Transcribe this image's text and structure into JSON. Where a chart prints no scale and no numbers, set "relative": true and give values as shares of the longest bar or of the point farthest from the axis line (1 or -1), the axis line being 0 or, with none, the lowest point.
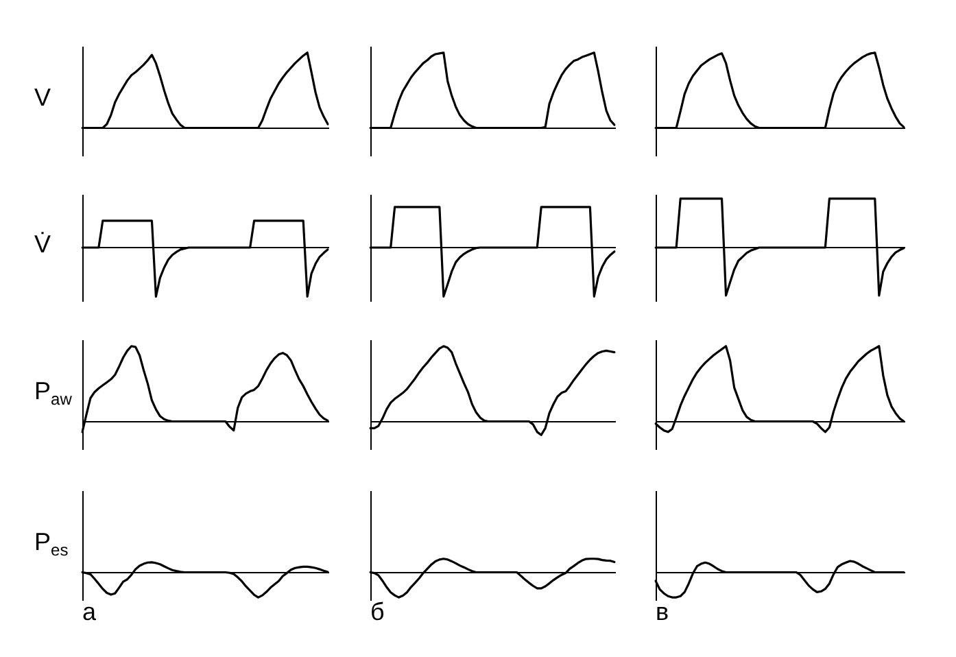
{
  "chart_data": [
    {
      "type": "line",
      "relative": true,
      "ylabel": "V",
      "color": "#000000",
      "categories": [
        null,
        null,
        null,
        null,
        null,
        null,
        null,
        null,
        null,
        null,
        null,
        null,
        null,
        null,
        null,
        null,
        null,
        null,
        null,
        null,
        null,
        null,
        null,
        null,
        null,
        null,
        null,
        null,
        null,
        null,
        null,
        null,
        null,
        null,
        null,
        null,
        null,
        null,
        null,
        null,
        null,
        null,
        null,
        null,
        null,
        null,
        null,
        null,
        null,
        null,
        null,
        null,
        null,
        null,
        null,
        null,
        null,
        null,
        null,
        null,
        null
      ],
      "values": [
        0,
        0,
        0,
        0,
        0,
        0,
        0.05,
        0.17,
        0.34,
        0.45,
        0.54,
        0.63,
        0.7,
        0.74,
        0.79,
        0.84,
        0.9,
        0.97,
        0.86,
        0.69,
        0.5,
        0.33,
        0.19,
        0.11,
        0.04,
        0,
        0,
        0,
        0,
        0,
        0,
        0,
        0,
        0,
        0,
        0,
        0,
        0,
        0,
        0,
        0,
        0,
        0,
        0,
        0.1,
        0.25,
        0.39,
        0.49,
        0.59,
        0.67,
        0.74,
        0.8,
        0.86,
        0.91,
        0.96,
        1,
        0.74,
        0.47,
        0.27,
        0.15,
        0.05
      ]
    },
    {
      "type": "line",
      "relative": true,
      "color": "#000000",
      "categories": [
        null,
        null,
        null,
        null,
        null,
        null,
        null,
        null,
        null,
        null,
        null,
        null,
        null,
        null,
        null,
        null,
        null,
        null,
        null,
        null,
        null,
        null,
        null,
        null,
        null,
        null,
        null,
        null,
        null,
        null,
        null,
        null,
        null,
        null,
        null,
        null,
        null,
        null,
        null,
        null,
        null,
        null,
        null,
        null,
        null,
        null,
        null,
        null,
        null,
        null,
        null,
        null,
        null,
        null,
        null,
        null,
        null,
        null,
        null,
        null,
        null
      ],
      "values": [
        0,
        0,
        0,
        0,
        0,
        0,
        0.19,
        0.36,
        0.49,
        0.58,
        0.67,
        0.74,
        0.8,
        0.86,
        0.9,
        0.95,
        0.98,
        0.99,
        1,
        0.62,
        0.43,
        0.28,
        0.17,
        0.1,
        0.05,
        0.02,
        0,
        0,
        0,
        0,
        0,
        0,
        0,
        0,
        0,
        0,
        0,
        0,
        0,
        0,
        0,
        0,
        0,
        0.01,
        0.32,
        0.47,
        0.59,
        0.7,
        0.78,
        0.84,
        0.89,
        0.91,
        0.94,
        0.96,
        0.98,
        1,
        0.75,
        0.47,
        0.23,
        0.1,
        0.04
      ]
    },
    {
      "type": "line",
      "relative": true,
      "color": "#000000",
      "categories": [
        null,
        null,
        null,
        null,
        null,
        null,
        null,
        null,
        null,
        null,
        null,
        null,
        null,
        null,
        null,
        null,
        null,
        null,
        null,
        null,
        null,
        null,
        null,
        null,
        null,
        null,
        null,
        null,
        null,
        null,
        null,
        null,
        null,
        null,
        null,
        null,
        null,
        null,
        null,
        null,
        null,
        null,
        null,
        null,
        null,
        null,
        null,
        null,
        null,
        null,
        null,
        null,
        null,
        null,
        null,
        null,
        null,
        null,
        null,
        null,
        null
      ],
      "values": [
        0,
        0,
        0,
        0,
        0,
        0,
        0.22,
        0.45,
        0.59,
        0.69,
        0.76,
        0.83,
        0.87,
        0.91,
        0.94,
        0.97,
        0.99,
        0.86,
        0.63,
        0.43,
        0.3,
        0.2,
        0.12,
        0.06,
        0.02,
        0,
        0,
        0,
        0,
        0,
        0,
        0,
        0,
        0,
        0,
        0,
        0,
        0,
        0,
        0,
        0,
        0,
        0.25,
        0.46,
        0.59,
        0.68,
        0.75,
        0.81,
        0.86,
        0.9,
        0.94,
        0.97,
        0.99,
        1,
        0.8,
        0.57,
        0.39,
        0.26,
        0.15,
        0.06,
        0.01
      ]
    },
    {
      "type": "line",
      "relative": true,
      "ylabel": "V̇",
      "color": "#000000",
      "categories": [
        null,
        null,
        null,
        null,
        null,
        null,
        null,
        null,
        null,
        null,
        null,
        null,
        null,
        null,
        null,
        null,
        null,
        null,
        null,
        null,
        null,
        null,
        null,
        null,
        null,
        null,
        null,
        null,
        null,
        null,
        null,
        null,
        null,
        null,
        null,
        null,
        null,
        null,
        null,
        null,
        null,
        null,
        null,
        null,
        null,
        null,
        null,
        null,
        null,
        null,
        null,
        null,
        null,
        null,
        null,
        null,
        null,
        null,
        null,
        null,
        null
      ],
      "values": [
        0,
        0,
        0,
        0,
        0,
        0.55,
        0.55,
        0.55,
        0.55,
        0.55,
        0.55,
        0.55,
        0.55,
        0.55,
        0.55,
        0.55,
        0.55,
        0.55,
        -1,
        -0.62,
        -0.41,
        -0.25,
        -0.15,
        -0.09,
        -0.04,
        -0.02,
        0,
        0,
        0,
        0,
        0,
        0,
        0,
        0,
        0,
        0,
        0,
        0,
        0,
        0,
        0,
        0,
        0.55,
        0.55,
        0.55,
        0.55,
        0.55,
        0.55,
        0.55,
        0.55,
        0.55,
        0.55,
        0.55,
        0.55,
        0.55,
        -1,
        -0.53,
        -0.33,
        -0.19,
        -0.11,
        -0.04
      ]
    },
    {
      "type": "line",
      "relative": true,
      "color": "#000000",
      "categories": [
        null,
        null,
        null,
        null,
        null,
        null,
        null,
        null,
        null,
        null,
        null,
        null,
        null,
        null,
        null,
        null,
        null,
        null,
        null,
        null,
        null,
        null,
        null,
        null,
        null,
        null,
        null,
        null,
        null,
        null,
        null,
        null,
        null,
        null,
        null,
        null,
        null,
        null,
        null,
        null,
        null,
        null,
        null,
        null,
        null,
        null,
        null,
        null,
        null,
        null,
        null,
        null,
        null,
        null,
        null,
        null,
        null,
        null,
        null,
        null,
        null
      ],
      "values": [
        0,
        0,
        0,
        0,
        0,
        0,
        0.83,
        0.83,
        0.83,
        0.83,
        0.83,
        0.83,
        0.83,
        0.83,
        0.83,
        0.83,
        0.83,
        0.83,
        -1,
        -0.75,
        -0.49,
        -0.3,
        -0.2,
        -0.13,
        -0.08,
        -0.04,
        -0.01,
        0,
        0,
        0,
        0,
        0,
        0,
        0,
        0,
        0,
        0,
        0,
        0,
        0,
        0,
        0,
        0.83,
        0.83,
        0.83,
        0.83,
        0.83,
        0.83,
        0.83,
        0.83,
        0.83,
        0.83,
        0.83,
        0.83,
        0.83,
        -1,
        -0.6,
        -0.39,
        -0.24,
        -0.15,
        -0.08
      ]
    },
    {
      "type": "line",
      "relative": true,
      "color": "#000000",
      "categories": [
        null,
        null,
        null,
        null,
        null,
        null,
        null,
        null,
        null,
        null,
        null,
        null,
        null,
        null,
        null,
        null,
        null,
        null,
        null,
        null,
        null,
        null,
        null,
        null,
        null,
        null,
        null,
        null,
        null,
        null,
        null,
        null,
        null,
        null,
        null,
        null,
        null,
        null,
        null,
        null,
        null,
        null,
        null,
        null,
        null,
        null,
        null,
        null,
        null,
        null,
        null,
        null,
        null,
        null,
        null,
        null,
        null,
        null,
        null,
        null,
        null
      ],
      "values": [
        0,
        0,
        0,
        0,
        0,
        0,
        1,
        1,
        1,
        1,
        1,
        1,
        1,
        1,
        1,
        1,
        1,
        -0.98,
        -0.71,
        -0.45,
        -0.27,
        -0.19,
        -0.11,
        -0.06,
        -0.03,
        0,
        0,
        0,
        0,
        0,
        0,
        0,
        0,
        0,
        0,
        0,
        0,
        0,
        0,
        0,
        0,
        0,
        1,
        1,
        1,
        1,
        1,
        1,
        1,
        1,
        1,
        1,
        1,
        1,
        -0.98,
        -0.49,
        -0.32,
        -0.19,
        -0.1,
        -0.05,
        -0.01
      ]
    },
    {
      "type": "line",
      "relative": true,
      "ylabel": "P$_{aw}$",
      "color": "#000000",
      "categories": [
        null,
        null,
        null,
        null,
        null,
        null,
        null,
        null,
        null,
        null,
        null,
        null,
        null,
        null,
        null,
        null,
        null,
        null,
        null,
        null,
        null,
        null,
        null,
        null,
        null,
        null,
        null,
        null,
        null,
        null,
        null,
        null,
        null,
        null,
        null,
        null,
        null,
        null,
        null,
        null,
        null,
        null,
        null,
        null,
        null,
        null,
        null,
        null,
        null,
        null,
        null,
        null,
        null,
        null,
        null,
        null,
        null,
        null,
        null,
        null,
        null
      ],
      "values": [
        -0.14,
        0.09,
        0.31,
        0.39,
        0.44,
        0.48,
        0.52,
        0.56,
        0.62,
        0.73,
        0.85,
        0.94,
        1,
        0.99,
        0.88,
        0.68,
        0.5,
        0.28,
        0.16,
        0.07,
        0.03,
        0.01,
        0,
        0,
        0,
        0,
        0,
        0,
        0,
        0,
        0,
        0,
        0,
        0,
        0,
        0,
        -0.07,
        -0.12,
        0.18,
        0.32,
        0.37,
        0.4,
        0.42,
        0.47,
        0.57,
        0.68,
        0.77,
        0.84,
        0.89,
        0.91,
        0.88,
        0.81,
        0.68,
        0.56,
        0.47,
        0.36,
        0.26,
        0.17,
        0.09,
        0.04,
        0.01
      ]
    },
    {
      "type": "line",
      "relative": true,
      "color": "#000000",
      "categories": [
        null,
        null,
        null,
        null,
        null,
        null,
        null,
        null,
        null,
        null,
        null,
        null,
        null,
        null,
        null,
        null,
        null,
        null,
        null,
        null,
        null,
        null,
        null,
        null,
        null,
        null,
        null,
        null,
        null,
        null,
        null,
        null,
        null,
        null,
        null,
        null,
        null,
        null,
        null,
        null,
        null,
        null,
        null,
        null,
        null,
        null,
        null,
        null,
        null,
        null,
        null,
        null,
        null,
        null,
        null,
        null,
        null,
        null,
        null,
        null,
        null
      ],
      "values": [
        -0.09,
        -0.09,
        -0.06,
        0.04,
        0.16,
        0.25,
        0.3,
        0.34,
        0.38,
        0.43,
        0.5,
        0.57,
        0.65,
        0.72,
        0.78,
        0.85,
        0.91,
        0.97,
        1,
        0.98,
        0.92,
        0.77,
        0.64,
        0.51,
        0.39,
        0.23,
        0.12,
        0.05,
        0.01,
        0,
        0,
        0,
        0,
        0,
        0,
        0,
        0,
        0,
        0,
        0,
        -0.04,
        -0.14,
        -0.18,
        -0.09,
        0.11,
        0.23,
        0.33,
        0.38,
        0.4,
        0.47,
        0.55,
        0.62,
        0.69,
        0.76,
        0.82,
        0.87,
        0.91,
        0.93,
        0.94,
        0.93,
        0.92
      ]
    },
    {
      "type": "line",
      "relative": true,
      "color": "#000000",
      "categories": [
        null,
        null,
        null,
        null,
        null,
        null,
        null,
        null,
        null,
        null,
        null,
        null,
        null,
        null,
        null,
        null,
        null,
        null,
        null,
        null,
        null,
        null,
        null,
        null,
        null,
        null,
        null,
        null,
        null,
        null,
        null,
        null,
        null,
        null,
        null,
        null,
        null,
        null,
        null,
        null,
        null,
        null,
        null,
        null,
        null,
        null,
        null,
        null,
        null,
        null,
        null,
        null,
        null,
        null,
        null,
        null,
        null,
        null,
        null,
        null,
        null
      ],
      "values": [
        -0.03,
        -0.08,
        -0.12,
        -0.14,
        -0.1,
        0.05,
        0.21,
        0.34,
        0.45,
        0.56,
        0.65,
        0.72,
        0.78,
        0.83,
        0.88,
        0.92,
        0.96,
        1,
        0.81,
        0.45,
        0.3,
        0.15,
        0.06,
        0.02,
        0,
        0,
        0,
        0,
        0,
        0,
        0,
        0,
        0,
        0,
        0,
        0,
        0,
        0,
        0,
        -0.03,
        -0.09,
        -0.14,
        -0.08,
        0.13,
        0.3,
        0.45,
        0.57,
        0.66,
        0.73,
        0.8,
        0.85,
        0.9,
        0.94,
        0.97,
        1,
        0.61,
        0.35,
        0.2,
        0.11,
        0.04,
        0
      ]
    },
    {
      "type": "line",
      "relative": true,
      "ylabel": "P$_{es}$",
      "annotations": [
        "а"
      ],
      "color": "#000000",
      "categories": [
        null,
        null,
        null,
        null,
        null,
        null,
        null,
        null,
        null,
        null,
        null,
        null,
        null,
        null,
        null,
        null,
        null,
        null,
        null,
        null,
        null,
        null,
        null,
        null,
        null,
        null,
        null,
        null,
        null,
        null,
        null,
        null,
        null,
        null,
        null,
        null,
        null,
        null,
        null,
        null,
        null,
        null,
        null,
        null,
        null,
        null,
        null,
        null,
        null,
        null,
        null,
        null,
        null,
        null,
        null,
        null,
        null,
        null,
        null,
        null,
        null
      ],
      "values": [
        0,
        -0.03,
        -0.08,
        -0.26,
        -0.46,
        -0.66,
        -0.82,
        -0.89,
        -0.84,
        -0.61,
        -0.37,
        -0.28,
        -0.1,
        0.12,
        0.26,
        0.34,
        0.39,
        0.4,
        0.37,
        0.32,
        0.24,
        0.16,
        0.09,
        0.05,
        0.02,
        0,
        0,
        0,
        0,
        0,
        0,
        0,
        0,
        0,
        0,
        0,
        -0.02,
        -0.07,
        -0.2,
        -0.36,
        -0.56,
        -0.73,
        -0.9,
        -1,
        -0.92,
        -0.78,
        -0.61,
        -0.48,
        -0.35,
        -0.15,
        -0.03,
        0.1,
        0.17,
        0.2,
        0.22,
        0.22,
        0.2,
        0.17,
        0.12,
        0.06,
        0.01
      ]
    },
    {
      "type": "line",
      "relative": true,
      "annotations": [
        "б"
      ],
      "color": "#000000",
      "categories": [
        null,
        null,
        null,
        null,
        null,
        null,
        null,
        null,
        null,
        null,
        null,
        null,
        null,
        null,
        null,
        null,
        null,
        null,
        null,
        null,
        null,
        null,
        null,
        null,
        null,
        null,
        null,
        null,
        null,
        null,
        null,
        null,
        null,
        null,
        null,
        null,
        null,
        null,
        null,
        null,
        null,
        null,
        null,
        null,
        null,
        null,
        null,
        null,
        null,
        null,
        null,
        null,
        null,
        null,
        null,
        null,
        null,
        null,
        null,
        null,
        null
      ],
      "values": [
        0,
        -0.03,
        -0.12,
        -0.34,
        -0.59,
        -0.8,
        -0.92,
        -1,
        -0.93,
        -0.8,
        -0.59,
        -0.42,
        -0.24,
        -0.03,
        0.14,
        0.31,
        0.44,
        0.51,
        0.54,
        0.51,
        0.44,
        0.36,
        0.27,
        0.2,
        0.12,
        0.05,
        0,
        0,
        0,
        0,
        0,
        0,
        0,
        0,
        0,
        0,
        0,
        -0.14,
        -0.29,
        -0.42,
        -0.54,
        -0.64,
        -0.64,
        -0.56,
        -0.44,
        -0.31,
        -0.2,
        -0.1,
        -0.03,
        0.14,
        0.25,
        0.37,
        0.47,
        0.53,
        0.54,
        0.54,
        0.53,
        0.49,
        0.47,
        0.46,
        0.41
      ]
    },
    {
      "type": "line",
      "relative": true,
      "annotations": [
        "в"
      ],
      "color": "#000000",
      "categories": [
        null,
        null,
        null,
        null,
        null,
        null,
        null,
        null,
        null,
        null,
        null,
        null,
        null,
        null,
        null,
        null,
        null,
        null,
        null,
        null,
        null,
        null,
        null,
        null,
        null,
        null,
        null,
        null,
        null,
        null,
        null,
        null,
        null,
        null,
        null,
        null,
        null,
        null,
        null,
        null,
        null,
        null,
        null,
        null,
        null,
        null,
        null,
        null,
        null,
        null,
        null,
        null,
        null,
        null,
        null,
        null,
        null,
        null,
        null,
        null,
        null
      ],
      "values": [
        -0.34,
        -0.68,
        -0.84,
        -0.95,
        -1,
        -1,
        -0.95,
        -0.79,
        -0.45,
        -0.05,
        0.24,
        0.34,
        0.39,
        0.34,
        0.24,
        0.13,
        0.05,
        0,
        0,
        0,
        0,
        0,
        0,
        0,
        0,
        0,
        0,
        0,
        0,
        0,
        0,
        0,
        0,
        0,
        0,
        -0.11,
        -0.32,
        -0.53,
        -0.68,
        -0.79,
        -0.76,
        -0.66,
        -0.45,
        -0.08,
        0.21,
        0.32,
        0.39,
        0.45,
        0.42,
        0.34,
        0.24,
        0.16,
        0.08,
        0,
        0,
        0,
        0,
        0,
        0,
        0,
        0
      ]
    }
  ]
}
